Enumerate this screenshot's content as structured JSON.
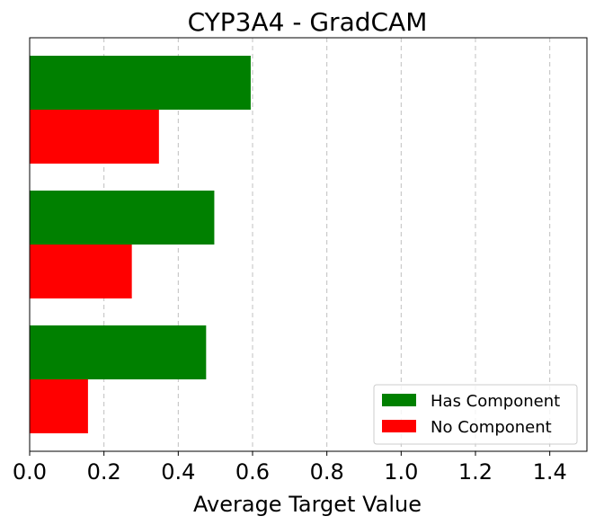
{
  "chart_data": {
    "type": "bar",
    "orientation": "horizontal",
    "title": "CYP3A4 - GradCAM",
    "xlabel": "Average Target Value",
    "ylabel": "",
    "xlim": [
      0,
      1.5
    ],
    "xticks": [
      "0.0",
      "0.2",
      "0.4",
      "0.6",
      "0.8",
      "1.0",
      "1.2",
      "1.4"
    ],
    "grid": "x-dashed",
    "legend_position": "lower right",
    "categories": [
      "",
      "",
      ""
    ],
    "series": [
      {
        "name": "Has Component",
        "color": "#008000",
        "values": [
          0.595,
          0.497,
          0.475
        ]
      },
      {
        "name": "No Component",
        "color": "#ff0000",
        "values": [
          0.348,
          0.275,
          0.157
        ]
      }
    ]
  }
}
